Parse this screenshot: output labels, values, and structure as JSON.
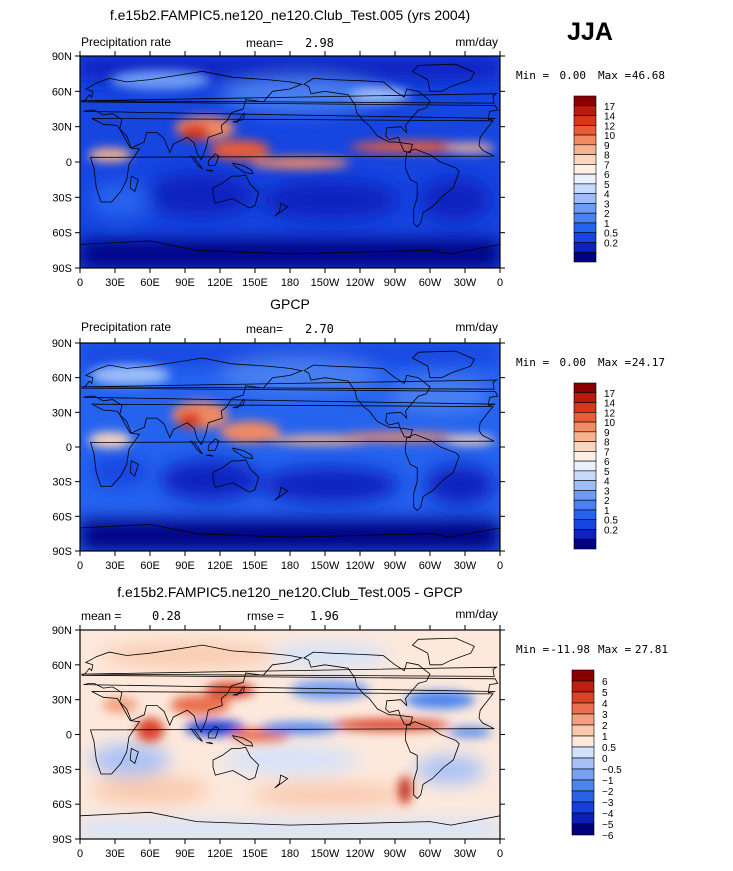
{
  "season": "JJA",
  "colors": {
    "precip": [
      "#000080",
      "#0b22c0",
      "#1645e0",
      "#2563ef",
      "#4a80f2",
      "#6e9cf4",
      "#9cbdf7",
      "#c7d9fa",
      "#eaf1fd",
      "#fdf0e4",
      "#fbd6bc",
      "#f7b28e",
      "#f28a62",
      "#ea5b37",
      "#d83519",
      "#b81a0b",
      "#8a0000"
    ],
    "diff": [
      "#00007a",
      "#0a1fb5",
      "#1540d8",
      "#2a62e6",
      "#4d85ee",
      "#779ff2",
      "#a7c1f6",
      "#d3e2fb",
      "#fde9dc",
      "#f9c9ad",
      "#f2a07f",
      "#e8704d",
      "#d9432a",
      "#bd2010",
      "#8a0000"
    ],
    "land": "#000000"
  },
  "chart_data": [
    {
      "type": "heatmap",
      "title": "f.e15b2.FAMPIC5.ne120_ne120.Club_Test.005 (yrs 2004)",
      "left_label": "Precipitation rate",
      "stat_label": "mean=",
      "stat_value": "2.98",
      "units": "mm/day",
      "min_label": "Min =",
      "min_value": "0.00",
      "max_label": "Max =",
      "max_value": "46.68",
      "xticks": [
        "0",
        "30E",
        "60E",
        "90E",
        "120E",
        "150E",
        "180",
        "150W",
        "120W",
        "90W",
        "60W",
        "30W",
        "0"
      ],
      "yticks": [
        "90N",
        "60N",
        "30N",
        "0",
        "30S",
        "60S",
        "90S"
      ],
      "xlim": [
        0,
        360
      ],
      "ylim": [
        -90,
        90
      ],
      "colorbar_levels": [
        "17",
        "14",
        "12",
        "10",
        "9",
        "8",
        "7",
        "6",
        "5",
        "4",
        "3",
        "2",
        "1",
        "0.5",
        "0.2"
      ]
    },
    {
      "type": "heatmap",
      "title": "GPCP",
      "left_label": "Precipitation rate",
      "stat_label": "mean=",
      "stat_value": "2.70",
      "units": "mm/day",
      "min_label": "Min =",
      "min_value": "0.00",
      "max_label": "Max =",
      "max_value": "24.17",
      "xticks": [
        "0",
        "30E",
        "60E",
        "90E",
        "120E",
        "150E",
        "180",
        "150W",
        "120W",
        "90W",
        "60W",
        "30W",
        "0"
      ],
      "yticks": [
        "90N",
        "60N",
        "30N",
        "0",
        "30S",
        "60S",
        "90S"
      ],
      "xlim": [
        0,
        360
      ],
      "ylim": [
        -90,
        90
      ],
      "colorbar_levels": [
        "17",
        "14",
        "12",
        "10",
        "9",
        "8",
        "7",
        "6",
        "5",
        "4",
        "3",
        "2",
        "1",
        "0.5",
        "0.2"
      ]
    },
    {
      "type": "heatmap",
      "title": "f.e15b2.FAMPIC5.ne120_ne120.Club_Test.005 - GPCP",
      "left_label": "mean =",
      "stat_label": "rmse =",
      "left_value": "0.28",
      "stat_value": "1.96",
      "units": "mm/day",
      "min_label": "Min =",
      "min_value": "-11.98",
      "max_label": "Max =",
      "max_value": "27.81",
      "xticks": [
        "0",
        "30E",
        "60E",
        "90E",
        "120E",
        "150E",
        "180",
        "150W",
        "120W",
        "90W",
        "60W",
        "30W",
        "0"
      ],
      "yticks": [
        "90N",
        "60N",
        "30N",
        "0",
        "30S",
        "60S",
        "90S"
      ],
      "xlim": [
        0,
        360
      ],
      "ylim": [
        -90,
        90
      ],
      "colorbar_levels": [
        "6",
        "5",
        "4",
        "3",
        "2",
        "1",
        "0.5",
        "0",
        "−0.5",
        "−1",
        "−2",
        "−3",
        "−4",
        "−5",
        "−6"
      ]
    }
  ]
}
